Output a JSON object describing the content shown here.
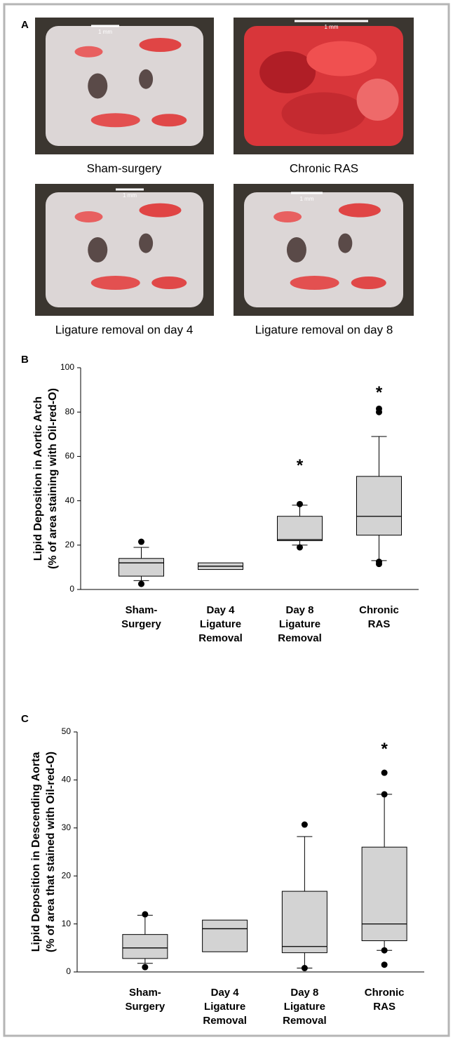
{
  "panel_labels": [
    "A",
    "B",
    "C"
  ],
  "photos": [
    {
      "caption": "Sham-surgery",
      "scale_bar": "1 mm"
    },
    {
      "caption": "Chronic RAS",
      "scale_bar": "1 mm"
    },
    {
      "caption": "Ligature removal on day 4",
      "scale_bar": "1 mm"
    },
    {
      "caption": "Ligature removal on day 8",
      "scale_bar": "1 mm"
    }
  ],
  "chart_data": [
    {
      "type": "box",
      "ylabel": [
        "Lipid Deposition in Aortic Arch",
        "(% of area staining with Oil-red-O)"
      ],
      "categories": [
        [
          "Sham-",
          "Surgery"
        ],
        [
          "Day 4",
          "Ligature",
          "Removal"
        ],
        [
          "Day 8",
          "Ligature",
          "Removal"
        ],
        [
          "Chronic",
          "RAS"
        ]
      ],
      "color": "#d3d3d3",
      "boxes": [
        {
          "low": 4,
          "q1": 6,
          "median": 12,
          "q3": 14,
          "high": 19,
          "outliers": [
            21.5,
            2.5
          ]
        },
        {
          "q1": 9,
          "median": 10.5,
          "q3": 12,
          "outliers": []
        },
        {
          "low": 20,
          "q1": 22,
          "median": 22.5,
          "q3": 33,
          "high": 38,
          "outliers": [
            38.5,
            19
          ]
        },
        {
          "low": 13,
          "q1": 24.5,
          "median": 33,
          "q3": 51,
          "high": 69,
          "outliers": [
            81.5,
            80,
            12.5,
            11.5
          ]
        }
      ],
      "annotations": [
        {
          "text": "*",
          "category": 2,
          "y": 57
        },
        {
          "text": "*",
          "category": 3,
          "y": 90
        }
      ],
      "ylim": [
        0,
        100
      ],
      "yticks": [
        0,
        20,
        40,
        60,
        80,
        100
      ]
    },
    {
      "type": "box",
      "ylabel": [
        "Lipid Deposition in Descending Aorta",
        "(% of area that stained with Oil-red-O)"
      ],
      "categories": [
        [
          "Sham-",
          "Surgery"
        ],
        [
          "Day 4",
          "Ligature",
          "Removal"
        ],
        [
          "Day 8",
          "Ligature",
          "Removal"
        ],
        [
          "Chronic",
          "RAS"
        ]
      ],
      "color": "#d3d3d3",
      "boxes": [
        {
          "low": 1.8,
          "q1": 2.8,
          "median": 5,
          "q3": 7.8,
          "high": 11.8,
          "outliers": [
            12,
            1
          ]
        },
        {
          "q1": 4.2,
          "median": 9,
          "q3": 10.8,
          "outliers": []
        },
        {
          "low": 0.8,
          "q1": 4,
          "median": 5.3,
          "q3": 16.8,
          "high": 28.2,
          "outliers": [
            30.7,
            0.8
          ]
        },
        {
          "low": 4.5,
          "q1": 6.5,
          "median": 10,
          "q3": 26,
          "high": 37,
          "outliers": [
            41.5,
            37,
            4.5,
            1.5
          ]
        }
      ],
      "annotations": [
        {
          "text": "*",
          "category": 3,
          "y": 47
        }
      ],
      "ylim": [
        0,
        50
      ],
      "yticks": [
        0,
        10,
        20,
        30,
        40,
        50
      ]
    }
  ]
}
